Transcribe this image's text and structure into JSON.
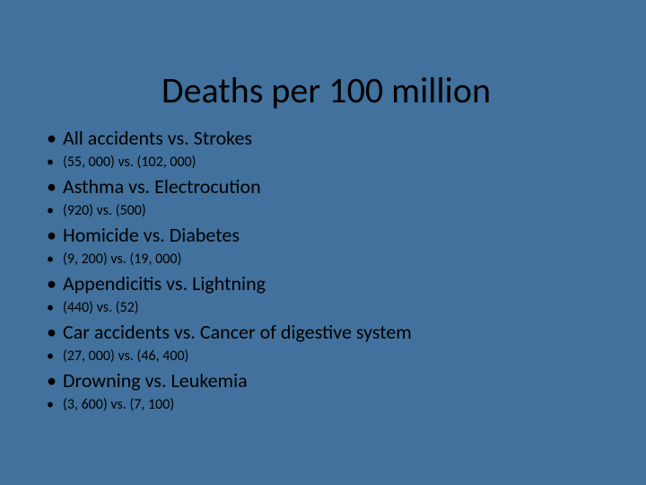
{
  "slide": {
    "title": "Deaths per 100 million",
    "background_color": "#41719c",
    "title_color": "#000000",
    "text_color": "#000000",
    "title_fontsize": 40,
    "main_item_fontsize": 22,
    "sub_item_fontsize": 16,
    "items": [
      {
        "type": "main",
        "text": "All accidents vs. Strokes"
      },
      {
        "type": "sub",
        "text": "(55, 000) vs. (102, 000)"
      },
      {
        "type": "main",
        "text": "Asthma vs. Electrocution"
      },
      {
        "type": "sub",
        "text": "(920) vs. (500)"
      },
      {
        "type": "main",
        "text": "Homicide vs. Diabetes"
      },
      {
        "type": "sub",
        "text": "(9, 200) vs. (19, 000)"
      },
      {
        "type": "main",
        "text": "Appendicitis vs. Lightning"
      },
      {
        "type": "sub",
        "text": "(440) vs. (52)"
      },
      {
        "type": "main",
        "text": "Car accidents vs. Cancer of digestive system"
      },
      {
        "type": "sub",
        "text": "(27, 000) vs. (46, 400)"
      },
      {
        "type": "main",
        "text": "Drowning vs. Leukemia"
      },
      {
        "type": "sub",
        "text": "(3, 600) vs. (7, 100)"
      }
    ]
  }
}
